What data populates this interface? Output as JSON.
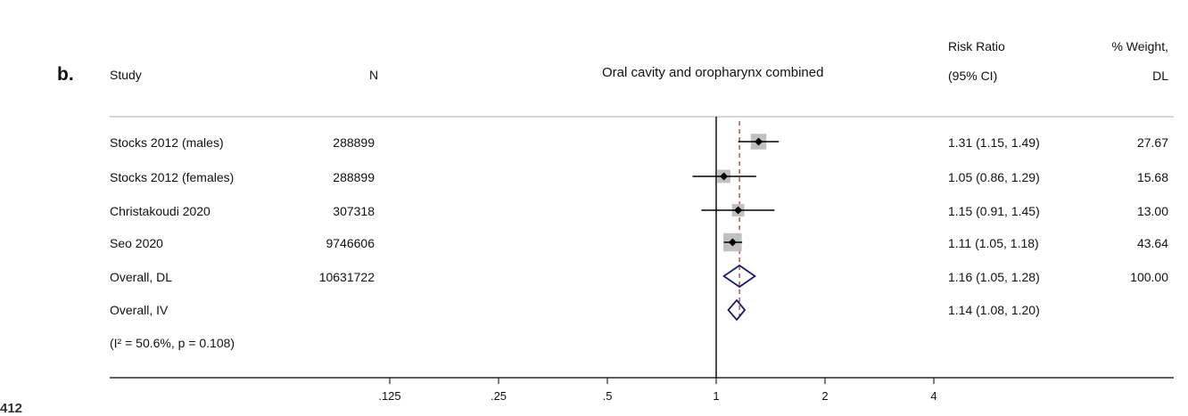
{
  "panel_label": "b.",
  "headers": {
    "study": "Study",
    "n": "N",
    "plot_title": "Oral cavity and oropharynx combined",
    "rr_line1": "Risk Ratio",
    "rr_line2": "(95% CI)",
    "weight_line1": "% Weight,",
    "weight_line2": "DL"
  },
  "rows": [
    {
      "study": "Stocks 2012 (males)",
      "n": "288899",
      "ci_text": "1.31 (1.15, 1.49)",
      "weight": "27.67"
    },
    {
      "study": "Stocks 2012 (females)",
      "n": "288899",
      "ci_text": "1.05 (0.86, 1.29)",
      "weight": "15.68"
    },
    {
      "study": "Christakoudi 2020",
      "n": "307318",
      "ci_text": "1.15 (0.91, 1.45)",
      "weight": "13.00"
    },
    {
      "study": "Seo 2020",
      "n": "9746606",
      "ci_text": "1.11 (1.05, 1.18)",
      "weight": "43.64"
    },
    {
      "study": "Overall, DL",
      "n": "10631722",
      "ci_text": "1.16 (1.05, 1.28)",
      "weight": "100.00"
    },
    {
      "study": "Overall, IV",
      "n": "",
      "ci_text": "1.14 (1.08, 1.20)",
      "weight": ""
    }
  ],
  "heterogeneity": "(I² = 50.6%, p = 0.108)",
  "cut_line_number": "412",
  "chart_data": {
    "type": "forest",
    "title": "Oral cavity and oropharynx combined",
    "x_scale": "log",
    "xticks": [
      0.125,
      0.25,
      0.5,
      1,
      2,
      4
    ],
    "xtick_labels": [
      ".125",
      ".25",
      ".5",
      "1",
      "2",
      "4"
    ],
    "reference_line": 1,
    "pooled_line": 1.16,
    "studies": [
      {
        "label": "Stocks 2012 (males)",
        "rr": 1.31,
        "lo": 1.15,
        "hi": 1.49,
        "weight": 27.67
      },
      {
        "label": "Stocks 2012 (females)",
        "rr": 1.05,
        "lo": 0.86,
        "hi": 1.29,
        "weight": 15.68
      },
      {
        "label": "Christakoudi 2020",
        "rr": 1.15,
        "lo": 0.91,
        "hi": 1.45,
        "weight": 13.0
      },
      {
        "label": "Seo 2020",
        "rr": 1.11,
        "lo": 1.05,
        "hi": 1.18,
        "weight": 43.64
      }
    ],
    "pooled": [
      {
        "label": "Overall, DL",
        "rr": 1.16,
        "lo": 1.05,
        "hi": 1.28
      },
      {
        "label": "Overall, IV",
        "rr": 1.14,
        "lo": 1.08,
        "hi": 1.2
      }
    ],
    "colors": {
      "marker": "#000000",
      "box": "#c0c0c0",
      "diamond": "#1a1a6e",
      "dashed": "#b22222",
      "axis": "#000000"
    }
  }
}
